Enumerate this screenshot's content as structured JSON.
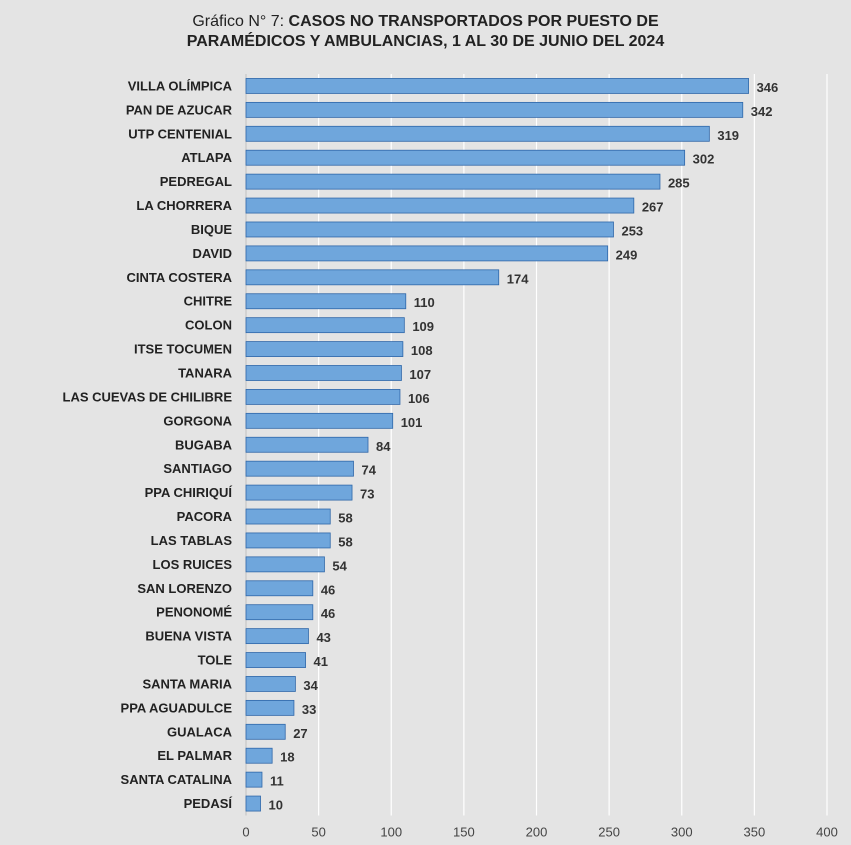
{
  "chart_data": {
    "type": "bar",
    "orientation": "horizontal",
    "title_prefix": "Gráfico N° 7: ",
    "title_line1": "CASOS NO TRANSPORTADOS POR PUESTO DE",
    "title_line2": "PARAMÉDICOS Y AMBULANCIAS, 1 AL 30 DE JUNIO DEL 2024",
    "categories": [
      "VILLA OLÍMPICA",
      "PAN DE AZUCAR",
      "UTP CENTENIAL",
      "ATLAPA",
      "PEDREGAL",
      "LA CHORRERA",
      "BIQUE",
      "DAVID",
      "CINTA COSTERA",
      "CHITRE",
      "COLON",
      "ITSE TOCUMEN",
      "TANARA",
      "LAS CUEVAS DE CHILIBRE",
      "GORGONA",
      "BUGABA",
      "SANTIAGO",
      "PPA CHIRIQUÍ",
      "PACORA",
      "LAS TABLAS",
      "LOS RUICES",
      "SAN LORENZO",
      "PENONOMÉ",
      "BUENA VISTA",
      "TOLE",
      "SANTA MARIA",
      "PPA AGUADULCE",
      "GUALACA",
      "EL PALMAR",
      "SANTA CATALINA",
      "PEDASÍ"
    ],
    "values": [
      346,
      342,
      319,
      302,
      285,
      267,
      253,
      249,
      174,
      110,
      109,
      108,
      107,
      106,
      101,
      84,
      74,
      73,
      58,
      58,
      54,
      46,
      46,
      43,
      41,
      34,
      33,
      27,
      18,
      11,
      10
    ],
    "xlim": [
      0,
      400
    ],
    "xticks": [
      0,
      50,
      100,
      150,
      200,
      250,
      300,
      350,
      400
    ],
    "grid": "vertical",
    "data_labels": true,
    "bar_color": "#6fa6dc",
    "bar_border": "#2f67a9"
  }
}
